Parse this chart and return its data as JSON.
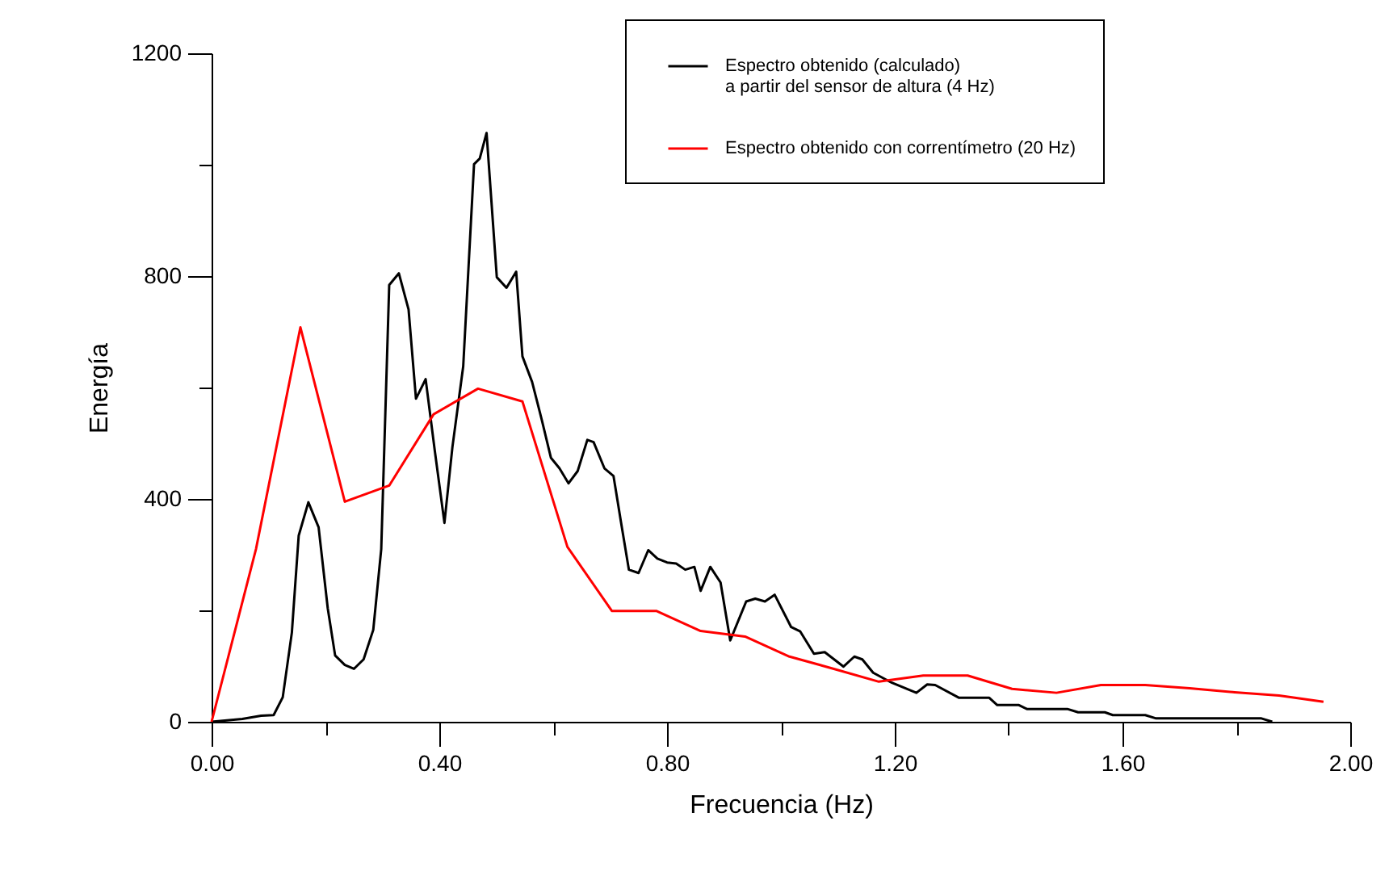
{
  "chart_data": {
    "type": "line",
    "xlabel": "Frecuencia (Hz)",
    "ylabel": "Energía",
    "xlim": [
      0,
      2
    ],
    "ylim": [
      0,
      1200
    ],
    "xticks": [
      {
        "value": 0,
        "label": "0.00"
      },
      {
        "value": 0.2,
        "label": null
      },
      {
        "value": 0.4,
        "label": "0.40"
      },
      {
        "value": 0.6,
        "label": null
      },
      {
        "value": 0.8,
        "label": "0.80"
      },
      {
        "value": 1.0,
        "label": null
      },
      {
        "value": 1.2,
        "label": "1.20"
      },
      {
        "value": 1.4,
        "label": null
      },
      {
        "value": 1.6,
        "label": "1.60"
      },
      {
        "value": 1.8,
        "label": null
      },
      {
        "value": 2.0,
        "label": "2.00"
      }
    ],
    "yticks": [
      0,
      {
        "value": 200,
        "label": null
      },
      400,
      {
        "value": 600,
        "label": null
      },
      800,
      {
        "value": 1000,
        "label": null
      },
      1200
    ],
    "grid": false,
    "legend": "top right",
    "marker": "none",
    "line_style": "solid",
    "series": [
      {
        "name": "Espectro obtenido (calculado)\na partir del sensor de altura (4 Hz)",
        "color": "#000000",
        "x": [
          0,
          0.054,
          0.087,
          0.109,
          0.125,
          0.141,
          0.153,
          0.17,
          0.188,
          0.204,
          0.217,
          0.234,
          0.25,
          0.267,
          0.284,
          0.298,
          0.312,
          0.329,
          0.346,
          0.359,
          0.376,
          0.392,
          0.409,
          0.423,
          0.442,
          0.461,
          0.471,
          0.483,
          0.501,
          0.518,
          0.535,
          0.546,
          0.563,
          0.58,
          0.596,
          0.611,
          0.627,
          0.643,
          0.66,
          0.671,
          0.69,
          0.706,
          0.719,
          0.733,
          0.75,
          0.767,
          0.783,
          0.8,
          0.816,
          0.832,
          0.848,
          0.859,
          0.876,
          0.894,
          0.911,
          0.939,
          0.955,
          0.972,
          0.989,
          1.018,
          1.034,
          1.058,
          1.077,
          1.11,
          1.129,
          1.143,
          1.162,
          1.195,
          1.238,
          1.257,
          1.271,
          1.313,
          1.366,
          1.38,
          1.418,
          1.432,
          1.503,
          1.522,
          1.569,
          1.583,
          1.64,
          1.659,
          1.844,
          1.863
        ],
        "values": [
          0,
          5,
          11,
          12,
          44,
          160,
          334,
          394,
          349,
          204,
          119,
          102,
          95,
          112,
          165,
          310,
          784,
          805,
          740,
          580,
          615,
          487,
          357,
          493,
          638,
          1001,
          1011,
          1057,
          798,
          779,
          808,
          656,
          610,
          542,
          474,
          455,
          428,
          450,
          506,
          502,
          455,
          441,
          359,
          273,
          267,
          308,
          293,
          286,
          284,
          273,
          278,
          235,
          278,
          250,
          146,
          216,
          221,
          216,
          228,
          170,
          162,
          122,
          125,
          99,
          117,
          112,
          88,
          70,
          52,
          67,
          66,
          43,
          43,
          30,
          30,
          23,
          23,
          17,
          17,
          12,
          12,
          6,
          6,
          0
        ]
      },
      {
        "name": "Espectro obtenido con correntímetro (20 Hz)",
        "color": "#ff0000",
        "x": [
          0,
          0.078,
          0.156,
          0.234,
          0.312,
          0.39,
          0.468,
          0.546,
          0.625,
          0.703,
          0.781,
          0.859,
          0.937,
          1.015,
          1.093,
          1.172,
          1.25,
          1.328,
          1.406,
          1.484,
          1.562,
          1.64,
          1.718,
          1.797,
          1.875,
          1.953
        ],
        "values": [
          0,
          310,
          708,
          395,
          424,
          552,
          598,
          575,
          314,
          199,
          199,
          163,
          153,
          117,
          95,
          72,
          83,
          83,
          59,
          52,
          66,
          66,
          60,
          53,
          47,
          36
        ]
      }
    ]
  }
}
